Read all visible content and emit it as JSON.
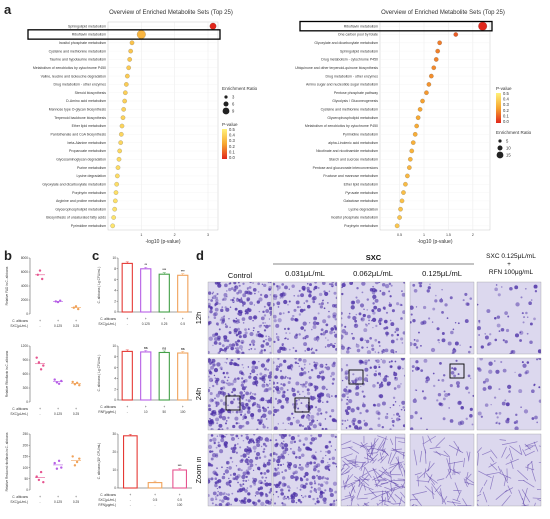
{
  "panels": {
    "a": "a",
    "b": "b",
    "c": "c",
    "d": "d"
  },
  "colors": {
    "low_p": "#fff27a",
    "mid_p": "#f7a630",
    "high_p": "#e1271c",
    "pink": "#e6548f",
    "violet": "#b75fe6",
    "orange": "#f0a25a",
    "red": "#e53935",
    "green": "#43a047",
    "grid": "#cccccc"
  },
  "chart_data": [
    {
      "id": "a_left",
      "type": "scatter",
      "title": "Overview of Enriched Metabolite Sets (Top 25)",
      "xlabel": "-log10 (p-value)",
      "xlim": [
        0,
        3.3
      ],
      "xticks": [
        1,
        2,
        3
      ],
      "categories": [
        "Sphingolipid metabolism",
        "Riboflavin metabolism",
        "Inositol phosphate metabolism",
        "Cysteine and methionine metabolism",
        "Taurine and hypotaurine metabolism",
        "Metabolism of xenobiotics by cytochrome P450",
        "Valine, leucine and isoleucine degradation",
        "Drug metabolism - other enzymes",
        "Steroid biosynthesis",
        "D-Amino acid metabolism",
        "Mannose type O-glycan biosynthesis",
        "Terpenoid backbone biosynthesis",
        "Ether lipid metabolism",
        "Pantothenate and CoA biosynthesis",
        "beta-Alanine metabolism",
        "Propanoate metabolism",
        "Glycosaminoglycan degradation",
        "Purine metabolism",
        "Lysine degradation",
        "Glyoxylate and dicarboxylate metabolism",
        "Porphyrin metabolism",
        "Arginine and proline metabolism",
        "Glycerophospholipid metabolism",
        "Biosynthesis of unsaturated fatty acids",
        "Pyrimidine metabolism"
      ],
      "values": [
        3.15,
        1.0,
        0.72,
        0.68,
        0.65,
        0.62,
        0.58,
        0.55,
        0.52,
        0.5,
        0.47,
        0.45,
        0.42,
        0.4,
        0.38,
        0.35,
        0.33,
        0.3,
        0.28,
        0.26,
        0.24,
        0.22,
        0.2,
        0.17,
        0.14
      ],
      "ratios": [
        6,
        9,
        3,
        3,
        3,
        3,
        3,
        3,
        3,
        3,
        3,
        3,
        3,
        3,
        3,
        3,
        3,
        3,
        3,
        3,
        3,
        3,
        3,
        3,
        3
      ],
      "highlight_index": 1,
      "legend_size_title": "Enrichment Ratio",
      "legend_sizes": [
        "3",
        "6",
        "9"
      ],
      "legend_color_title": "P-value",
      "legend_colors": [
        "0.5",
        "0.4",
        "0.3",
        "0.2",
        "0.1",
        "0.0"
      ]
    },
    {
      "id": "a_right",
      "type": "scatter",
      "title": "Overview of Enriched Metabolite Sets (Top 25)",
      "xlabel": "-log10 (p-value)",
      "xlim": [
        0.1,
        2.35
      ],
      "xticks": [
        0.5,
        1.0,
        1.5,
        2.0
      ],
      "categories": [
        "Riboflavin metabolism",
        "One carbon pool by folate",
        "Glyoxylate and dicarboxylate metabolism",
        "Sphingolipid metabolism",
        "Drug metabolism - cytochrome P450",
        "Ubiquinone and other terpenoid-quinone biosynthesis",
        "Drug metabolism - other enzymes",
        "Amino sugar and nucleotide sugar metabolism",
        "Pentose phosphate pathway",
        "Glycolysis / Gluconeogenesis",
        "Cysteine and methionine metabolism",
        "Glycerophospholipid metabolism",
        "Metabolism of xenobiotics by cytochrome P450",
        "Pyrimidine metabolism",
        "alpha-Linolenic acid metabolism",
        "Nicotinate and nicotinamide metabolism",
        "Starch and sucrose metabolism",
        "Pentose and glucuronate interconversions",
        "Fructose and mannose metabolism",
        "Ether lipid metabolism",
        "Pyruvate metabolism",
        "Galactose metabolism",
        "Lysine degradation",
        "Inositol phosphate metabolism",
        "Porphyrin metabolism"
      ],
      "values": [
        2.2,
        1.65,
        1.32,
        1.28,
        1.25,
        1.2,
        1.15,
        1.1,
        1.05,
        0.97,
        0.92,
        0.88,
        0.85,
        0.82,
        0.78,
        0.75,
        0.72,
        0.7,
        0.66,
        0.62,
        0.58,
        0.55,
        0.52,
        0.5,
        0.45
      ],
      "ratios": [
        15,
        5,
        5,
        5,
        5,
        5,
        5,
        5,
        5,
        5,
        5,
        5,
        5,
        5,
        5,
        5,
        5,
        5,
        5,
        5,
        5,
        5,
        5,
        5,
        5
      ],
      "highlight_index": 0,
      "legend_color_title": "P-value",
      "legend_colors": [
        "0.5",
        "0.4",
        "0.3",
        "0.2",
        "0.1",
        "0.0"
      ],
      "legend_size_title": "Enrichment Ratio",
      "legend_sizes": [
        "5",
        "10",
        "15"
      ]
    },
    {
      "id": "b1",
      "type": "scatter",
      "ylabel": "Relative FAD in C. albicans",
      "ylim": [
        0,
        8000
      ],
      "yticks": [
        "0",
        "2000",
        "4000",
        "6000",
        "8000"
      ],
      "groups": [
        "-",
        "0.125",
        "0.25"
      ],
      "points": [
        [
          5600,
          6200,
          5000
        ],
        [
          1800,
          1700,
          1900
        ],
        [
          900,
          1100,
          700
        ]
      ],
      "means": [
        5600,
        1800,
        900
      ],
      "colors": [
        "#e6548f",
        "#b75fe6",
        "#f0a25a"
      ],
      "row_labels": [
        "C. albicans",
        "SXC(μL/mL)"
      ],
      "row1": [
        "+",
        "+",
        "+"
      ],
      "row2": [
        "-",
        "0.125",
        "0.25"
      ]
    },
    {
      "id": "b2",
      "type": "scatter",
      "ylabel": "Relative Riboflavin in C. albicans",
      "ylim": [
        0,
        1200
      ],
      "yticks": [
        "0",
        "300",
        "600",
        "900",
        "1200"
      ],
      "groups": [
        "-",
        "0.125",
        "0.25"
      ],
      "points": [
        [
          950,
          850,
          700,
          780
        ],
        [
          480,
          420,
          390,
          450
        ],
        [
          430,
          380,
          410,
          360
        ]
      ],
      "means": [
        820,
        440,
        400
      ],
      "colors": [
        "#e6548f",
        "#b75fe6",
        "#f0a25a"
      ],
      "row_labels": [
        "C. albicans",
        "SXC(μL/mL)"
      ],
      "row1": [
        "+",
        "+",
        "+"
      ],
      "row2": [
        "-",
        "0.125",
        "0.25"
      ]
    },
    {
      "id": "b3",
      "type": "scatter",
      "ylabel": "Relative Reduced riboflavin in C. albicans",
      "ylim": [
        0,
        250
      ],
      "yticks": [
        "0",
        "50",
        "100",
        "150",
        "200",
        "250"
      ],
      "groups": [
        "-",
        "0.125",
        "0.25"
      ],
      "points": [
        [
          60,
          45,
          80,
          35
        ],
        [
          120,
          95,
          130,
          100
        ],
        [
          150,
          110,
          125,
          140
        ]
      ],
      "means": [
        55,
        112,
        131
      ],
      "colors": [
        "#e6548f",
        "#b75fe6",
        "#f0a25a"
      ],
      "row_labels": [
        "C. albicans",
        "SXC(μL/mL)"
      ],
      "row1": [
        "+",
        "+",
        "+"
      ],
      "row2": [
        "-",
        "0.125",
        "0.25"
      ]
    },
    {
      "id": "c1",
      "type": "bar",
      "ylabel": "C. albicans ( Lg CFU/mL )",
      "ylim": [
        0,
        10
      ],
      "yticks": [
        "0",
        "2",
        "4",
        "6",
        "8",
        "10"
      ],
      "categories": [
        "-",
        "0.125",
        "0.25",
        "0.5"
      ],
      "values": [
        9.0,
        8.0,
        7.0,
        6.8
      ],
      "sig": [
        "",
        "**",
        "***",
        "***"
      ],
      "colors": [
        "#e53935",
        "#b75fe6",
        "#43a047",
        "#f0a25a"
      ],
      "row_labels": [
        "C. albicans",
        "SXC(μL/mL)"
      ],
      "row1": [
        "+",
        "+",
        "+",
        "+"
      ],
      "row2": [
        "-",
        "0.125",
        "0.25",
        "0.5"
      ]
    },
    {
      "id": "c2",
      "type": "bar",
      "ylabel": "C. albicans ( Lg CFU/mL )",
      "ylim": [
        0,
        10
      ],
      "yticks": [
        "0",
        "2",
        "4",
        "6",
        "8",
        "10"
      ],
      "categories": [
        "-",
        "10",
        "50",
        "100"
      ],
      "values": [
        9.0,
        8.9,
        8.8,
        8.7
      ],
      "sig": [
        "",
        "ns",
        "ns",
        "ns"
      ],
      "colors": [
        "#e53935",
        "#b75fe6",
        "#43a047",
        "#f0a25a"
      ],
      "row_labels": [
        "C. albicans",
        "RNF(μg/mL)"
      ],
      "row1": [
        "+",
        "+",
        "+",
        "+"
      ],
      "row2": [
        "-",
        "10",
        "50",
        "100"
      ]
    },
    {
      "id": "c3",
      "type": "bar",
      "ylabel": "C. albicans (10⁵ CFU/mL)",
      "ylim": [
        0,
        30
      ],
      "yticks": [
        "0",
        "10",
        "20",
        "30"
      ],
      "categories": [
        "-",
        "0.5",
        "0.5"
      ],
      "values": [
        29,
        3,
        10
      ],
      "sig": [
        "",
        "",
        "***"
      ],
      "colors": [
        "#e53935",
        "#f0a25a",
        "#e6548f"
      ],
      "row_labels": [
        "C. albicans",
        "SXC(μL/mL)",
        "RFN(μg/mL)"
      ],
      "row1": [
        "+",
        "+",
        "+"
      ],
      "row2": [
        "-",
        "0.5",
        "0.5"
      ],
      "row3": [
        "-",
        "-",
        "100"
      ]
    }
  ],
  "panel_d": {
    "header_sxc": "SXC",
    "columns": [
      "Control",
      "0.031μL/mL",
      "0.062μL/mL",
      "0.125μL/mL"
    ],
    "combo_line1": "SXC  0.125μL/mL",
    "combo_line2": "+",
    "combo_line3": "RFN  100μg/mL",
    "rows": [
      "12h",
      "24h",
      "Zoom in"
    ],
    "densities": [
      [
        0.95,
        0.6,
        0.45,
        0.08,
        0.06
      ],
      [
        0.97,
        0.7,
        0.5,
        0.1,
        0.08
      ],
      [
        0.95,
        0.8,
        0.55,
        0.12,
        0.1
      ]
    ]
  }
}
